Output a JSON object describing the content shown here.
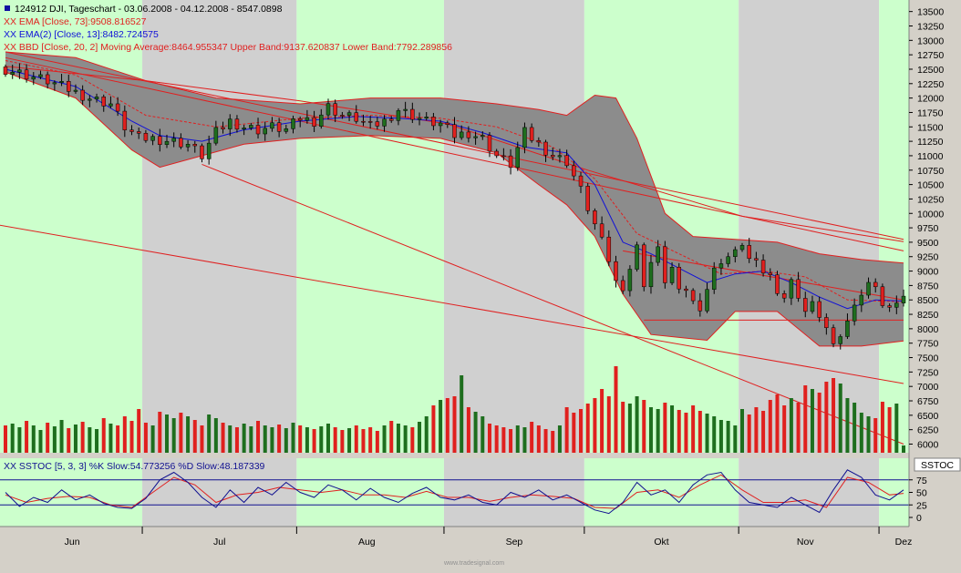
{
  "header": {
    "title": "124912  DJI, Tageschart - 03.06.2008 - 04.12.2008 - 8547.0898",
    "title_color": "#000000"
  },
  "legend": {
    "ema73": "XX EMA [Close, 73]:9508.816527",
    "ema13": "XX EMA(2) [Close, 13]:8482.724575",
    "bbd": "XX BBD [Close, 20, 2] Moving Average:8464.955347 Upper Band:9137.620837 Lower Band:7792.289856",
    "stoch": "XX SSTOC [5, 3, 3] %K Slow:54.773256  %D Slow:48.187339",
    "stoch_tag": "SSTOC"
  },
  "footer": {
    "watermark": "www.tradesignal.com"
  },
  "colors": {
    "up": "#1e6e1e",
    "down": "#e0201e",
    "band_fill": "#8c8c8c",
    "bg_green": "#ccffcc",
    "bg_gray": "#d0d0d0",
    "ema13": "#1010d8",
    "ema73": "#e02020",
    "stoch_k": "#101090",
    "stoch_d": "#e02020"
  },
  "chart_data": {
    "type": "candlestick",
    "symbol": "DJI",
    "title": "124912  DJI, Tageschart - 03.06.2008 - 04.12.2008 - 8547.0898",
    "y_axis": {
      "ylim": [
        5850,
        13700
      ],
      "ticks": [
        6000,
        6250,
        6500,
        6750,
        7000,
        7250,
        7500,
        7750,
        8000,
        8250,
        8500,
        8750,
        9000,
        9250,
        9500,
        9750,
        10000,
        10250,
        10500,
        10750,
        11000,
        11250,
        11500,
        11750,
        12000,
        12250,
        12500,
        12750,
        13000,
        13250,
        13500
      ]
    },
    "x_axis": {
      "months": [
        "Jun",
        "Jul",
        "Aug",
        "Sep",
        "Okt",
        "Nov",
        "Dez"
      ],
      "month_start_index": [
        0,
        20,
        42,
        63,
        83,
        105,
        125
      ],
      "month_label_index": [
        9.5,
        30.5,
        51.5,
        72.5,
        93.5,
        114,
        128
      ]
    },
    "stoch_axis": {
      "ticks": [
        0,
        25,
        50,
        75
      ]
    },
    "close_points": [
      [
        0,
        12500
      ],
      [
        3,
        12400
      ],
      [
        6,
        12300
      ],
      [
        9,
        12150
      ],
      [
        12,
        12000
      ],
      [
        15,
        11900
      ],
      [
        17,
        11500
      ],
      [
        19,
        11300
      ],
      [
        21,
        11300
      ],
      [
        24,
        11250
      ],
      [
        26,
        11200
      ],
      [
        28,
        11000
      ],
      [
        30,
        11400
      ],
      [
        32,
        11600
      ],
      [
        34,
        11500
      ],
      [
        36,
        11450
      ],
      [
        38,
        11500
      ],
      [
        40,
        11450
      ],
      [
        42,
        11650
      ],
      [
        44,
        11600
      ],
      [
        46,
        11850
      ],
      [
        48,
        11700
      ],
      [
        50,
        11650
      ],
      [
        52,
        11500
      ],
      [
        54,
        11600
      ],
      [
        56,
        11800
      ],
      [
        58,
        11700
      ],
      [
        60,
        11600
      ],
      [
        62,
        11550
      ],
      [
        64,
        11350
      ],
      [
        66,
        11400
      ],
      [
        68,
        11300
      ],
      [
        70,
        11000
      ],
      [
        72,
        10850
      ],
      [
        74,
        11400
      ],
      [
        76,
        11200
      ],
      [
        78,
        11000
      ],
      [
        80,
        10900
      ],
      [
        82,
        10400
      ],
      [
        84,
        9800
      ],
      [
        86,
        9200
      ],
      [
        87,
        8800
      ],
      [
        88,
        8750
      ],
      [
        89,
        9050
      ],
      [
        90,
        9400
      ],
      [
        91,
        8800
      ],
      [
        92,
        9150
      ],
      [
        93,
        9350
      ],
      [
        94,
        8850
      ],
      [
        95,
        9050
      ],
      [
        96,
        8600
      ],
      [
        97,
        8700
      ],
      [
        98,
        8450
      ],
      [
        99,
        8400
      ],
      [
        100,
        8700
      ],
      [
        101,
        9000
      ],
      [
        102,
        9200
      ],
      [
        103,
        9250
      ],
      [
        104,
        9300
      ],
      [
        105,
        9500
      ],
      [
        106,
        9200
      ],
      [
        107,
        9100
      ],
      [
        108,
        9000
      ],
      [
        109,
        8900
      ],
      [
        110,
        8700
      ],
      [
        111,
        8550
      ],
      [
        112,
        8800
      ],
      [
        113,
        8600
      ],
      [
        114,
        8300
      ],
      [
        115,
        8400
      ],
      [
        116,
        8250
      ],
      [
        117,
        8000
      ],
      [
        118,
        7650
      ],
      [
        119,
        7900
      ],
      [
        120,
        8100
      ],
      [
        121,
        8500
      ],
      [
        122,
        8600
      ],
      [
        123,
        8750
      ],
      [
        124,
        8800
      ],
      [
        125,
        8400
      ],
      [
        126,
        8300
      ],
      [
        127,
        8500
      ],
      [
        128,
        8547
      ]
    ],
    "ema73_points": [
      [
        0,
        12550
      ],
      [
        20,
        12300
      ],
      [
        42,
        11950
      ],
      [
        63,
        11550
      ],
      [
        83,
        10750
      ],
      [
        105,
        9950
      ],
      [
        128,
        9510
      ]
    ],
    "ema13_points": [
      [
        0,
        12500
      ],
      [
        10,
        12200
      ],
      [
        18,
        11600
      ],
      [
        22,
        11350
      ],
      [
        28,
        11250
      ],
      [
        34,
        11450
      ],
      [
        42,
        11600
      ],
      [
        50,
        11680
      ],
      [
        56,
        11650
      ],
      [
        62,
        11600
      ],
      [
        68,
        11400
      ],
      [
        74,
        11150
      ],
      [
        80,
        11050
      ],
      [
        84,
        10500
      ],
      [
        88,
        9500
      ],
      [
        92,
        9300
      ],
      [
        96,
        9050
      ],
      [
        100,
        8800
      ],
      [
        104,
        8950
      ],
      [
        108,
        9000
      ],
      [
        112,
        8800
      ],
      [
        116,
        8550
      ],
      [
        120,
        8350
      ],
      [
        124,
        8500
      ],
      [
        128,
        8480
      ]
    ],
    "bb_middle_points": [
      [
        0,
        12650
      ],
      [
        10,
        12400
      ],
      [
        20,
        11700
      ],
      [
        30,
        11500
      ],
      [
        42,
        11650
      ],
      [
        52,
        11700
      ],
      [
        62,
        11650
      ],
      [
        70,
        11500
      ],
      [
        78,
        11150
      ],
      [
        84,
        10600
      ],
      [
        90,
        9650
      ],
      [
        96,
        9300
      ],
      [
        102,
        8950
      ],
      [
        108,
        9000
      ],
      [
        114,
        8900
      ],
      [
        120,
        8500
      ],
      [
        128,
        8465
      ]
    ],
    "bb_upper_points": [
      [
        0,
        12800
      ],
      [
        10,
        12700
      ],
      [
        20,
        12300
      ],
      [
        30,
        12000
      ],
      [
        42,
        11900
      ],
      [
        52,
        12000
      ],
      [
        62,
        12000
      ],
      [
        70,
        11900
      ],
      [
        76,
        11800
      ],
      [
        80,
        11700
      ],
      [
        84,
        12050
      ],
      [
        87,
        12000
      ],
      [
        90,
        11300
      ],
      [
        94,
        10000
      ],
      [
        98,
        9600
      ],
      [
        104,
        9550
      ],
      [
        110,
        9500
      ],
      [
        116,
        9300
      ],
      [
        122,
        9200
      ],
      [
        128,
        9140
      ]
    ],
    "bb_lower_points": [
      [
        0,
        12450
      ],
      [
        10,
        12000
      ],
      [
        18,
        11100
      ],
      [
        22,
        10800
      ],
      [
        28,
        11000
      ],
      [
        34,
        11200
      ],
      [
        42,
        11300
      ],
      [
        52,
        11350
      ],
      [
        62,
        11300
      ],
      [
        70,
        11050
      ],
      [
        76,
        10500
      ],
      [
        80,
        10150
      ],
      [
        84,
        9600
      ],
      [
        88,
        8600
      ],
      [
        92,
        7900
      ],
      [
        96,
        7850
      ],
      [
        100,
        7800
      ],
      [
        104,
        8300
      ],
      [
        110,
        8300
      ],
      [
        116,
        7700
      ],
      [
        122,
        7700
      ],
      [
        128,
        7790
      ]
    ],
    "trendlines": [
      {
        "from": [
          0,
          12700
        ],
        "to": [
          128,
          9350
        ]
      },
      {
        "from": [
          0,
          12800
        ],
        "to": [
          128,
          9550
        ]
      },
      {
        "from": [
          -1,
          9800
        ],
        "to": [
          128,
          7050
        ]
      },
      {
        "from": [
          28,
          10850
        ],
        "to": [
          128,
          6000
        ]
      },
      {
        "from": [
          88,
          9350
        ],
        "to": [
          128,
          8500
        ]
      },
      {
        "from": [
          91,
          8150
        ],
        "to": [
          128,
          8150
        ]
      }
    ],
    "volume": {
      "ylim": [
        0,
        100
      ],
      "pattern": [
        30,
        32,
        28,
        35,
        30,
        25,
        33,
        29,
        36,
        27,
        31,
        34,
        28,
        26,
        38,
        32,
        30,
        40,
        35,
        48,
        33,
        30,
        45,
        42,
        38,
        44,
        40,
        36,
        30,
        42,
        38,
        33,
        30,
        28,
        32,
        29,
        35,
        30,
        28,
        31,
        27,
        33,
        30,
        28,
        26,
        29,
        32,
        28,
        25,
        27,
        30,
        26,
        28,
        24,
        30,
        35,
        32,
        30,
        28,
        34,
        40,
        52,
        58,
        60,
        62,
        85,
        50,
        45,
        40,
        32,
        30,
        28,
        26,
        30,
        28,
        34,
        30,
        26,
        24,
        30,
        50,
        44,
        48,
        54,
        60,
        70,
        62,
        95,
        56,
        54,
        62,
        58,
        50,
        48,
        55,
        52,
        47,
        44,
        52,
        46,
        43,
        40,
        36,
        35,
        30,
        48,
        42,
        50,
        46,
        58,
        64,
        52,
        60,
        55,
        74,
        70,
        66,
        78,
        82,
        76,
        60,
        55,
        44,
        40,
        38,
        56,
        50,
        54,
        8
      ]
    },
    "stochastic": {
      "ylim": [
        0,
        100
      ],
      "k_points": [
        [
          0,
          50
        ],
        [
          2,
          22
        ],
        [
          4,
          40
        ],
        [
          6,
          30
        ],
        [
          8,
          55
        ],
        [
          10,
          35
        ],
        [
          12,
          45
        ],
        [
          14,
          28
        ],
        [
          16,
          20
        ],
        [
          18,
          18
        ],
        [
          20,
          38
        ],
        [
          22,
          75
        ],
        [
          24,
          90
        ],
        [
          26,
          70
        ],
        [
          28,
          40
        ],
        [
          30,
          20
        ],
        [
          32,
          55
        ],
        [
          34,
          30
        ],
        [
          36,
          60
        ],
        [
          38,
          45
        ],
        [
          40,
          70
        ],
        [
          42,
          50
        ],
        [
          44,
          40
        ],
        [
          46,
          65
        ],
        [
          48,
          55
        ],
        [
          50,
          35
        ],
        [
          52,
          58
        ],
        [
          54,
          40
        ],
        [
          56,
          30
        ],
        [
          58,
          48
        ],
        [
          60,
          60
        ],
        [
          62,
          40
        ],
        [
          64,
          35
        ],
        [
          66,
          45
        ],
        [
          68,
          30
        ],
        [
          70,
          25
        ],
        [
          72,
          50
        ],
        [
          74,
          40
        ],
        [
          76,
          55
        ],
        [
          78,
          35
        ],
        [
          80,
          45
        ],
        [
          82,
          30
        ],
        [
          84,
          15
        ],
        [
          86,
          8
        ],
        [
          88,
          30
        ],
        [
          90,
          70
        ],
        [
          92,
          45
        ],
        [
          94,
          55
        ],
        [
          96,
          30
        ],
        [
          98,
          65
        ],
        [
          100,
          85
        ],
        [
          102,
          90
        ],
        [
          104,
          55
        ],
        [
          106,
          30
        ],
        [
          108,
          25
        ],
        [
          110,
          20
        ],
        [
          112,
          40
        ],
        [
          114,
          25
        ],
        [
          116,
          10
        ],
        [
          118,
          55
        ],
        [
          120,
          95
        ],
        [
          122,
          80
        ],
        [
          124,
          45
        ],
        [
          126,
          35
        ],
        [
          128,
          55
        ]
      ],
      "d_points": [
        [
          0,
          45
        ],
        [
          3,
          30
        ],
        [
          6,
          38
        ],
        [
          9,
          42
        ],
        [
          12,
          40
        ],
        [
          15,
          25
        ],
        [
          18,
          20
        ],
        [
          21,
          50
        ],
        [
          24,
          80
        ],
        [
          27,
          65
        ],
        [
          30,
          30
        ],
        [
          33,
          45
        ],
        [
          36,
          50
        ],
        [
          39,
          60
        ],
        [
          42,
          55
        ],
        [
          45,
          50
        ],
        [
          48,
          55
        ],
        [
          51,
          45
        ],
        [
          54,
          45
        ],
        [
          57,
          40
        ],
        [
          60,
          52
        ],
        [
          63,
          40
        ],
        [
          66,
          40
        ],
        [
          69,
          32
        ],
        [
          72,
          40
        ],
        [
          75,
          45
        ],
        [
          78,
          42
        ],
        [
          81,
          38
        ],
        [
          84,
          20
        ],
        [
          87,
          18
        ],
        [
          90,
          50
        ],
        [
          93,
          55
        ],
        [
          96,
          40
        ],
        [
          99,
          65
        ],
        [
          102,
          85
        ],
        [
          105,
          55
        ],
        [
          108,
          30
        ],
        [
          111,
          30
        ],
        [
          114,
          35
        ],
        [
          117,
          20
        ],
        [
          120,
          80
        ],
        [
          123,
          70
        ],
        [
          126,
          45
        ],
        [
          128,
          48
        ]
      ]
    }
  }
}
